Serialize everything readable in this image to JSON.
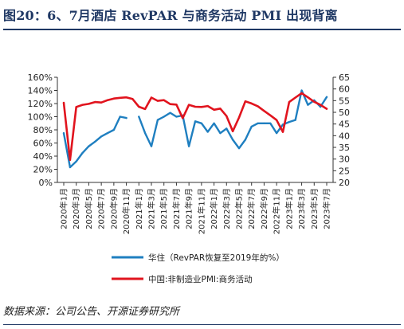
{
  "figure": {
    "title": "图20：6、7月酒店 RevPAR 与商务活动 PMI 出现背离",
    "source": "数据来源：公司公告、开源证券研究所"
  },
  "colors": {
    "blue": "#1f7fc0",
    "red": "#e1141e"
  },
  "chart_data": {
    "type": "line",
    "y_left": {
      "ticks": [
        "0%",
        "20%",
        "40%",
        "60%",
        "80%",
        "100%",
        "120%",
        "140%",
        "160%"
      ],
      "lim": [
        0,
        160
      ]
    },
    "y_right": {
      "ticks": [
        "20",
        "25",
        "30",
        "35",
        "40",
        "45",
        "50",
        "55",
        "60",
        "65"
      ],
      "lim": [
        20,
        65
      ]
    },
    "x_months": [
      "2020-01",
      "2020-02",
      "2020-03",
      "2020-04",
      "2020-05",
      "2020-06",
      "2020-07",
      "2020-08",
      "2020-09",
      "2020-10",
      "2020-11",
      "2020-12",
      "2021-01",
      "2021-02",
      "2021-03",
      "2021-04",
      "2021-05",
      "2021-06",
      "2021-07",
      "2021-08",
      "2021-09",
      "2021-10",
      "2021-11",
      "2021-12",
      "2022-01",
      "2022-02",
      "2022-03",
      "2022-04",
      "2022-05",
      "2022-06",
      "2022-07",
      "2022-08",
      "2022-09",
      "2022-10",
      "2022-11",
      "2022-12",
      "2023-01",
      "2023-02",
      "2023-03",
      "2023-04",
      "2023-05",
      "2023-06",
      "2023-07"
    ],
    "x_tick_labels": [
      "2020年1月",
      "2020年3月",
      "2020年5月",
      "2020年7月",
      "2020年9月",
      "2020年11月",
      "2021年1月",
      "2021年3月",
      "2021年5月",
      "2021年7月",
      "2021年9月",
      "2021年11月",
      "2022年1月",
      "2022年3月",
      "2022年5月",
      "2022年7月",
      "2022年9月",
      "2022年11月",
      "2023年1月",
      "2023年3月",
      "2023年5月",
      "2023年7月"
    ],
    "series": [
      {
        "name": "华住（RevPAR恢复至2019年的%）",
        "axis": "left",
        "color": "#1f7fc0",
        "values": [
          75,
          23,
          32,
          45,
          55,
          62,
          70,
          75,
          80,
          100,
          98,
          null,
          100,
          75,
          55,
          95,
          100,
          106,
          100,
          102,
          55,
          93,
          90,
          77,
          90,
          75,
          82,
          65,
          52,
          65,
          85,
          90,
          90,
          90,
          75,
          88,
          92,
          95,
          140,
          118,
          125,
          115,
          130
        ]
      },
      {
        "name": "中国:非制造业PMI:商务活动",
        "axis": "right",
        "color": "#e1141e",
        "values": [
          54.1,
          29.6,
          52.3,
          53.2,
          53.6,
          54.4,
          54.2,
          55.2,
          55.9,
          56.2,
          56.4,
          55.7,
          52.4,
          51.4,
          56.3,
          54.9,
          55.2,
          53.5,
          53.3,
          47.5,
          53.2,
          52.4,
          52.3,
          52.7,
          51.1,
          51.6,
          48.4,
          41.9,
          47.8,
          54.7,
          53.8,
          52.6,
          50.6,
          48.7,
          46.7,
          41.6,
          54.4,
          56.3,
          58.2,
          56.4,
          54.5,
          53.2,
          51.5
        ]
      }
    ],
    "legend_placement": "bottom",
    "grid": false
  }
}
